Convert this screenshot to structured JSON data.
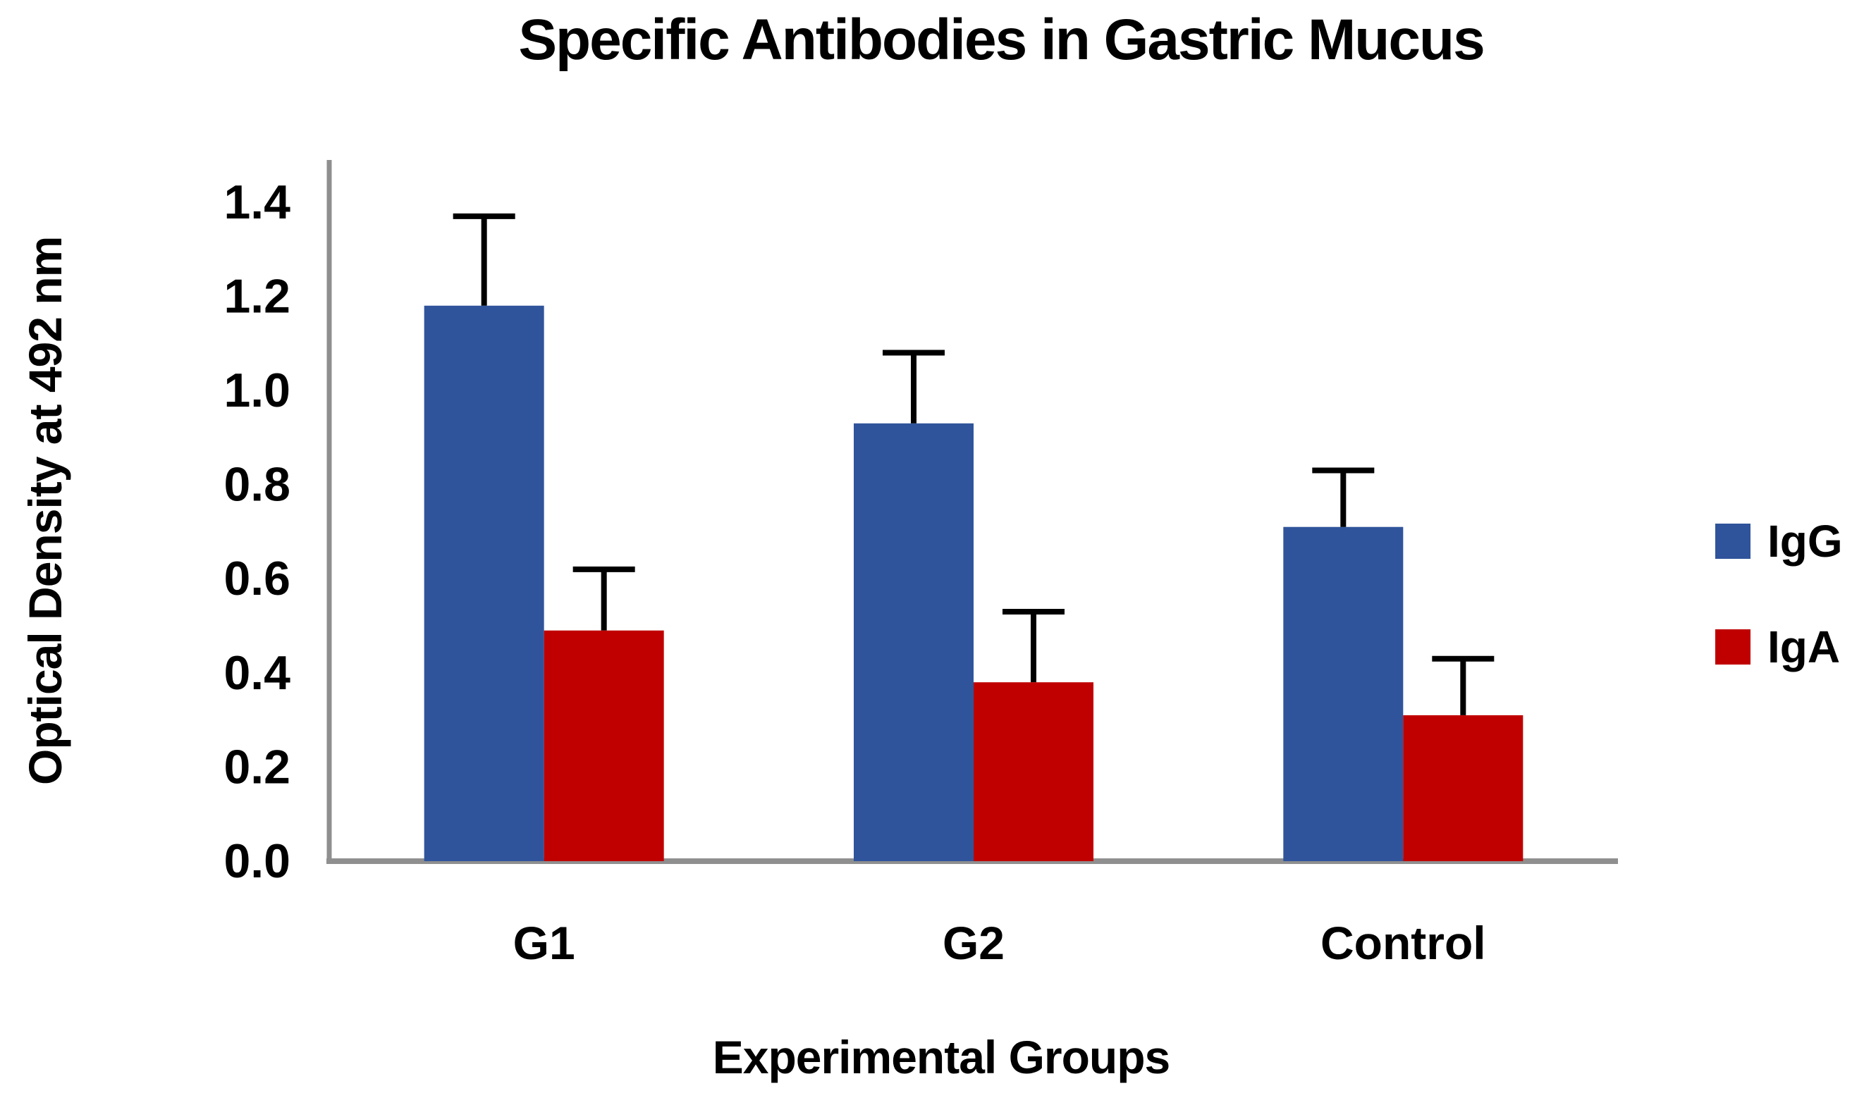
{
  "chart_data": {
    "type": "bar",
    "title": "Specific Antibodies in Gastric Mucus",
    "xlabel": "Experimental Groups",
    "ylabel": "Optical Density at 492 nm",
    "categories": [
      "G1",
      "G2",
      "Control"
    ],
    "series": [
      {
        "name": "IgG",
        "color": "#30549B",
        "values": [
          1.18,
          0.93,
          0.71
        ],
        "errors_plus": [
          0.19,
          0.15,
          0.12
        ]
      },
      {
        "name": "IgA",
        "color": "#C00000",
        "values": [
          0.49,
          0.38,
          0.31
        ],
        "errors_plus": [
          0.13,
          0.15,
          0.12
        ]
      }
    ],
    "ylim": [
      0.0,
      1.5
    ],
    "ytick_step": 0.2,
    "ytick_labels": [
      "0.0",
      "0.2",
      "0.4",
      "0.6",
      "0.8",
      "1.0",
      "1.2",
      "1.4"
    ],
    "grid": false,
    "legend_position": "right",
    "axis_color": "#8F8F8F",
    "error_bar_color": "#000000",
    "text_color": "#000000"
  }
}
